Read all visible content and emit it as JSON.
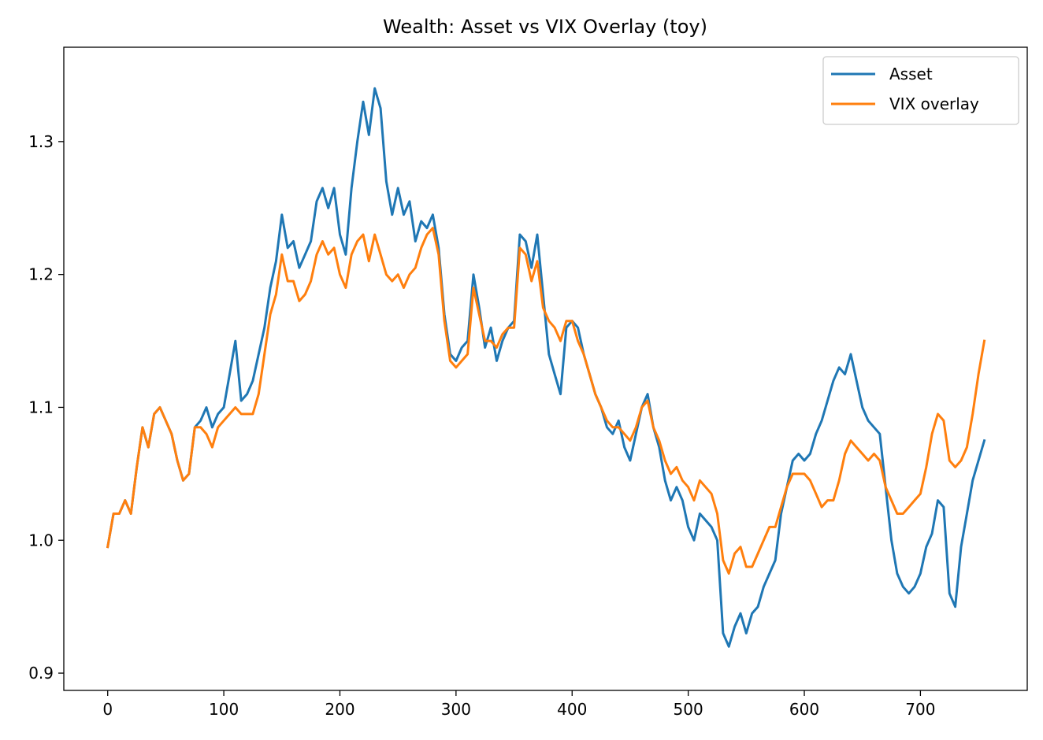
{
  "chart_data": {
    "type": "line",
    "title": "Wealth: Asset vs VIX Overlay (toy)",
    "xlabel": "",
    "ylabel": "",
    "xlim": [
      -37.8,
      792
    ],
    "ylim": [
      0.887,
      1.371
    ],
    "x_ticks": [
      0,
      100,
      200,
      300,
      400,
      500,
      600,
      700
    ],
    "y_ticks": [
      0.9,
      1.0,
      1.1,
      1.2,
      1.3
    ],
    "x_tick_labels": [
      "0",
      "100",
      "200",
      "300",
      "400",
      "500",
      "600",
      "700"
    ],
    "y_tick_labels": [
      "0.9",
      "1.0",
      "1.1",
      "1.2",
      "1.3"
    ],
    "grid": false,
    "legend_position": "top-right",
    "series": [
      {
        "name": "Asset",
        "color": "#1f77b4",
        "points": [
          [
            0,
            0.995
          ],
          [
            5,
            1.02
          ],
          [
            10,
            1.02
          ],
          [
            15,
            1.03
          ],
          [
            20,
            1.02
          ],
          [
            25,
            1.055
          ],
          [
            30,
            1.085
          ],
          [
            35,
            1.07
          ],
          [
            40,
            1.095
          ],
          [
            45,
            1.1
          ],
          [
            50,
            1.09
          ],
          [
            55,
            1.08
          ],
          [
            60,
            1.06
          ],
          [
            65,
            1.045
          ],
          [
            70,
            1.05
          ],
          [
            75,
            1.085
          ],
          [
            80,
            1.09
          ],
          [
            85,
            1.1
          ],
          [
            90,
            1.085
          ],
          [
            95,
            1.095
          ],
          [
            100,
            1.1
          ],
          [
            105,
            1.125
          ],
          [
            110,
            1.15
          ],
          [
            115,
            1.105
          ],
          [
            120,
            1.11
          ],
          [
            125,
            1.12
          ],
          [
            130,
            1.14
          ],
          [
            135,
            1.16
          ],
          [
            140,
            1.19
          ],
          [
            145,
            1.21
          ],
          [
            150,
            1.245
          ],
          [
            155,
            1.22
          ],
          [
            160,
            1.225
          ],
          [
            165,
            1.205
          ],
          [
            170,
            1.215
          ],
          [
            175,
            1.225
          ],
          [
            180,
            1.255
          ],
          [
            185,
            1.265
          ],
          [
            190,
            1.25
          ],
          [
            195,
            1.265
          ],
          [
            200,
            1.23
          ],
          [
            205,
            1.215
          ],
          [
            210,
            1.265
          ],
          [
            215,
            1.3
          ],
          [
            220,
            1.33
          ],
          [
            225,
            1.305
          ],
          [
            230,
            1.34
          ],
          [
            235,
            1.325
          ],
          [
            240,
            1.27
          ],
          [
            245,
            1.245
          ],
          [
            250,
            1.265
          ],
          [
            255,
            1.245
          ],
          [
            260,
            1.255
          ],
          [
            265,
            1.225
          ],
          [
            270,
            1.24
          ],
          [
            275,
            1.235
          ],
          [
            280,
            1.245
          ],
          [
            285,
            1.22
          ],
          [
            290,
            1.17
          ],
          [
            295,
            1.14
          ],
          [
            300,
            1.135
          ],
          [
            305,
            1.145
          ],
          [
            310,
            1.15
          ],
          [
            315,
            1.2
          ],
          [
            320,
            1.175
          ],
          [
            325,
            1.145
          ],
          [
            330,
            1.16
          ],
          [
            335,
            1.135
          ],
          [
            340,
            1.15
          ],
          [
            345,
            1.16
          ],
          [
            350,
            1.165
          ],
          [
            355,
            1.23
          ],
          [
            360,
            1.225
          ],
          [
            365,
            1.205
          ],
          [
            370,
            1.23
          ],
          [
            375,
            1.185
          ],
          [
            380,
            1.14
          ],
          [
            385,
            1.125
          ],
          [
            390,
            1.11
          ],
          [
            395,
            1.16
          ],
          [
            400,
            1.165
          ],
          [
            405,
            1.16
          ],
          [
            410,
            1.14
          ],
          [
            415,
            1.125
          ],
          [
            420,
            1.11
          ],
          [
            425,
            1.1
          ],
          [
            430,
            1.085
          ],
          [
            435,
            1.08
          ],
          [
            440,
            1.09
          ],
          [
            445,
            1.07
          ],
          [
            450,
            1.06
          ],
          [
            455,
            1.08
          ],
          [
            460,
            1.1
          ],
          [
            465,
            1.11
          ],
          [
            470,
            1.085
          ],
          [
            475,
            1.07
          ],
          [
            480,
            1.045
          ],
          [
            485,
            1.03
          ],
          [
            490,
            1.04
          ],
          [
            495,
            1.03
          ],
          [
            500,
            1.01
          ],
          [
            505,
            1.0
          ],
          [
            510,
            1.02
          ],
          [
            515,
            1.015
          ],
          [
            520,
            1.01
          ],
          [
            525,
            1.0
          ],
          [
            530,
            0.93
          ],
          [
            535,
            0.92
          ],
          [
            540,
            0.935
          ],
          [
            545,
            0.945
          ],
          [
            550,
            0.93
          ],
          [
            555,
            0.945
          ],
          [
            560,
            0.95
          ],
          [
            565,
            0.965
          ],
          [
            570,
            0.975
          ],
          [
            575,
            0.985
          ],
          [
            580,
            1.02
          ],
          [
            585,
            1.04
          ],
          [
            590,
            1.06
          ],
          [
            595,
            1.065
          ],
          [
            600,
            1.06
          ],
          [
            605,
            1.065
          ],
          [
            610,
            1.08
          ],
          [
            615,
            1.09
          ],
          [
            620,
            1.105
          ],
          [
            625,
            1.12
          ],
          [
            630,
            1.13
          ],
          [
            635,
            1.125
          ],
          [
            640,
            1.14
          ],
          [
            645,
            1.12
          ],
          [
            650,
            1.1
          ],
          [
            655,
            1.09
          ],
          [
            660,
            1.085
          ],
          [
            665,
            1.08
          ],
          [
            670,
            1.04
          ],
          [
            675,
            1.0
          ],
          [
            680,
            0.975
          ],
          [
            685,
            0.965
          ],
          [
            690,
            0.96
          ],
          [
            695,
            0.965
          ],
          [
            700,
            0.975
          ],
          [
            705,
            0.995
          ],
          [
            710,
            1.005
          ],
          [
            715,
            1.03
          ],
          [
            720,
            1.025
          ],
          [
            725,
            0.96
          ],
          [
            730,
            0.95
          ],
          [
            735,
            0.995
          ],
          [
            740,
            1.02
          ],
          [
            745,
            1.045
          ],
          [
            750,
            1.06
          ],
          [
            755,
            1.075
          ]
        ]
      },
      {
        "name": "VIX overlay",
        "color": "#ff7f0e",
        "points": [
          [
            0,
            0.995
          ],
          [
            5,
            1.02
          ],
          [
            10,
            1.02
          ],
          [
            15,
            1.03
          ],
          [
            20,
            1.02
          ],
          [
            25,
            1.055
          ],
          [
            30,
            1.085
          ],
          [
            35,
            1.07
          ],
          [
            40,
            1.095
          ],
          [
            45,
            1.1
          ],
          [
            50,
            1.09
          ],
          [
            55,
            1.08
          ],
          [
            60,
            1.06
          ],
          [
            65,
            1.045
          ],
          [
            70,
            1.05
          ],
          [
            75,
            1.085
          ],
          [
            80,
            1.085
          ],
          [
            85,
            1.08
          ],
          [
            90,
            1.07
          ],
          [
            95,
            1.085
          ],
          [
            100,
            1.09
          ],
          [
            105,
            1.095
          ],
          [
            110,
            1.1
          ],
          [
            115,
            1.095
          ],
          [
            120,
            1.095
          ],
          [
            125,
            1.095
          ],
          [
            130,
            1.11
          ],
          [
            135,
            1.14
          ],
          [
            140,
            1.17
          ],
          [
            145,
            1.185
          ],
          [
            150,
            1.215
          ],
          [
            155,
            1.195
          ],
          [
            160,
            1.195
          ],
          [
            165,
            1.18
          ],
          [
            170,
            1.185
          ],
          [
            175,
            1.195
          ],
          [
            180,
            1.215
          ],
          [
            185,
            1.225
          ],
          [
            190,
            1.215
          ],
          [
            195,
            1.22
          ],
          [
            200,
            1.2
          ],
          [
            205,
            1.19
          ],
          [
            210,
            1.215
          ],
          [
            215,
            1.225
          ],
          [
            220,
            1.23
          ],
          [
            225,
            1.21
          ],
          [
            230,
            1.23
          ],
          [
            235,
            1.215
          ],
          [
            240,
            1.2
          ],
          [
            245,
            1.195
          ],
          [
            250,
            1.2
          ],
          [
            255,
            1.19
          ],
          [
            260,
            1.2
          ],
          [
            265,
            1.205
          ],
          [
            270,
            1.22
          ],
          [
            275,
            1.23
          ],
          [
            280,
            1.235
          ],
          [
            285,
            1.215
          ],
          [
            290,
            1.165
          ],
          [
            295,
            1.135
          ],
          [
            300,
            1.13
          ],
          [
            305,
            1.135
          ],
          [
            310,
            1.14
          ],
          [
            315,
            1.19
          ],
          [
            320,
            1.17
          ],
          [
            325,
            1.15
          ],
          [
            330,
            1.15
          ],
          [
            335,
            1.145
          ],
          [
            340,
            1.155
          ],
          [
            345,
            1.16
          ],
          [
            350,
            1.16
          ],
          [
            355,
            1.22
          ],
          [
            360,
            1.215
          ],
          [
            365,
            1.195
          ],
          [
            370,
            1.21
          ],
          [
            375,
            1.175
          ],
          [
            380,
            1.165
          ],
          [
            385,
            1.16
          ],
          [
            390,
            1.15
          ],
          [
            395,
            1.165
          ],
          [
            400,
            1.165
          ],
          [
            405,
            1.15
          ],
          [
            410,
            1.14
          ],
          [
            415,
            1.125
          ],
          [
            420,
            1.11
          ],
          [
            425,
            1.1
          ],
          [
            430,
            1.09
          ],
          [
            435,
            1.085
          ],
          [
            440,
            1.085
          ],
          [
            445,
            1.08
          ],
          [
            450,
            1.075
          ],
          [
            455,
            1.085
          ],
          [
            460,
            1.1
          ],
          [
            465,
            1.105
          ],
          [
            470,
            1.085
          ],
          [
            475,
            1.075
          ],
          [
            480,
            1.06
          ],
          [
            485,
            1.05
          ],
          [
            490,
            1.055
          ],
          [
            495,
            1.045
          ],
          [
            500,
            1.04
          ],
          [
            505,
            1.03
          ],
          [
            510,
            1.045
          ],
          [
            515,
            1.04
          ],
          [
            520,
            1.035
          ],
          [
            525,
            1.02
          ],
          [
            530,
            0.985
          ],
          [
            535,
            0.975
          ],
          [
            540,
            0.99
          ],
          [
            545,
            0.995
          ],
          [
            550,
            0.98
          ],
          [
            555,
            0.98
          ],
          [
            560,
            0.99
          ],
          [
            565,
            1.0
          ],
          [
            570,
            1.01
          ],
          [
            575,
            1.01
          ],
          [
            580,
            1.025
          ],
          [
            585,
            1.04
          ],
          [
            590,
            1.05
          ],
          [
            595,
            1.05
          ],
          [
            600,
            1.05
          ],
          [
            605,
            1.045
          ],
          [
            610,
            1.035
          ],
          [
            615,
            1.025
          ],
          [
            620,
            1.03
          ],
          [
            625,
            1.03
          ],
          [
            630,
            1.045
          ],
          [
            635,
            1.065
          ],
          [
            640,
            1.075
          ],
          [
            645,
            1.07
          ],
          [
            650,
            1.065
          ],
          [
            655,
            1.06
          ],
          [
            660,
            1.065
          ],
          [
            665,
            1.06
          ],
          [
            670,
            1.04
          ],
          [
            675,
            1.03
          ],
          [
            680,
            1.02
          ],
          [
            685,
            1.02
          ],
          [
            690,
            1.025
          ],
          [
            695,
            1.03
          ],
          [
            700,
            1.035
          ],
          [
            705,
            1.055
          ],
          [
            710,
            1.08
          ],
          [
            715,
            1.095
          ],
          [
            720,
            1.09
          ],
          [
            725,
            1.06
          ],
          [
            730,
            1.055
          ],
          [
            735,
            1.06
          ],
          [
            740,
            1.07
          ],
          [
            745,
            1.095
          ],
          [
            750,
            1.125
          ],
          [
            755,
            1.15
          ]
        ]
      }
    ]
  }
}
